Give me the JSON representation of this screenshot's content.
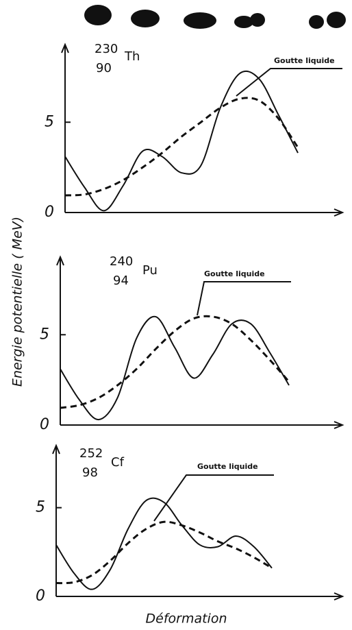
{
  "chart_data": [
    {
      "type": "line",
      "nuclide": {
        "A": "230",
        "Z": "90",
        "symbol": "Th"
      },
      "categories": [
        null,
        null,
        null,
        null,
        null,
        null,
        null,
        null,
        null,
        null,
        null,
        null,
        null
      ],
      "series": [
        {
          "color": "#111111",
          "style": "solid",
          "values": [
            3.1,
            1.4,
            0.1,
            1.5,
            3.4,
            3.1,
            2.2,
            2.6,
            5.8,
            7.7,
            7.4,
            5.4,
            3.3
          ]
        },
        {
          "name": "Goutte liquide",
          "color": "#111111",
          "style": "dashed",
          "values": [
            0.95,
            1.0,
            1.3,
            1.8,
            2.5,
            3.3,
            4.2,
            5.0,
            5.8,
            6.3,
            6.2,
            5.2,
            3.6
          ]
        }
      ],
      "ylim": [
        0,
        9.3
      ],
      "yticks": [
        0,
        5
      ]
    },
    {
      "type": "line",
      "nuclide": {
        "A": "240",
        "Z": "94",
        "symbol": "Pu"
      },
      "y_label": "Energie potentielle ( MeV)",
      "categories": [
        null,
        null,
        null,
        null,
        null,
        null,
        null,
        null,
        null,
        null,
        null,
        null,
        null
      ],
      "series": [
        {
          "color": "#111111",
          "style": "solid",
          "values": [
            3.1,
            1.4,
            0.3,
            1.5,
            4.8,
            6.0,
            4.3,
            2.6,
            3.9,
            5.6,
            5.6,
            4.0,
            2.2
          ]
        },
        {
          "name": "Goutte liquide",
          "color": "#111111",
          "style": "dashed",
          "values": [
            0.95,
            1.1,
            1.5,
            2.2,
            3.1,
            4.2,
            5.2,
            5.9,
            6.0,
            5.6,
            4.7,
            3.6,
            2.4
          ]
        }
      ],
      "ylim": [
        0,
        9.3
      ],
      "yticks": [
        0,
        5
      ]
    },
    {
      "type": "line",
      "nuclide": {
        "A": "252",
        "Z": "98",
        "symbol": "Cf"
      },
      "x_label": "Déformation",
      "categories": [
        null,
        null,
        null,
        null,
        null,
        null,
        null,
        null,
        null,
        null,
        null,
        null,
        null
      ],
      "series": [
        {
          "color": "#111111",
          "style": "solid",
          "values": [
            2.9,
            1.3,
            0.4,
            1.5,
            3.8,
            5.4,
            5.3,
            4.0,
            2.9,
            2.8,
            3.4,
            2.8,
            1.6
          ]
        },
        {
          "name": "Goutte liquide",
          "color": "#111111",
          "style": "dashed",
          "values": [
            0.75,
            0.8,
            1.2,
            2.0,
            3.0,
            3.8,
            4.2,
            4.0,
            3.6,
            3.1,
            2.7,
            2.2,
            1.6
          ]
        }
      ],
      "ylim": [
        0,
        8.5
      ],
      "yticks": [
        0,
        5
      ]
    }
  ]
}
